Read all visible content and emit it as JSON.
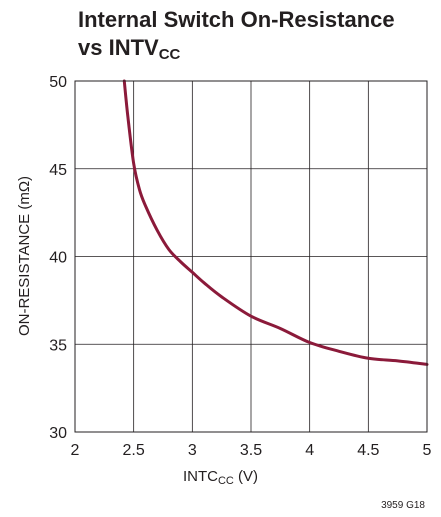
{
  "title": {
    "line1": "Internal Switch On-Resistance",
    "line2_main": "vs INTV",
    "line2_sub": "CC"
  },
  "footnote": "3959 G18",
  "chart_data": {
    "type": "line",
    "xlabel_main": "INTC",
    "xlabel_sub": "CC",
    "xlabel_unit": " (V)",
    "ylabel": "ON-RESISTANCE (mΩ)",
    "xlim": [
      2,
      5
    ],
    "ylim": [
      30,
      50
    ],
    "x_ticks": [
      2,
      2.5,
      3,
      3.5,
      4,
      4.5,
      5
    ],
    "x_tick_labels": [
      "2",
      "2.5",
      "3",
      "3.5",
      "4",
      "4.5",
      "5"
    ],
    "y_ticks": [
      30,
      35,
      40,
      45,
      50
    ],
    "y_tick_labels": [
      "30",
      "35",
      "40",
      "45",
      "50"
    ],
    "grid": true,
    "line_color": "#8b1a3a",
    "series": [
      {
        "x": [
          2.42,
          2.45,
          2.5,
          2.55,
          2.6,
          2.7,
          2.8,
          2.9,
          3.0,
          3.1,
          3.25,
          3.5,
          3.75,
          4.0,
          4.25,
          4.5,
          4.75,
          5.0
        ],
        "y": [
          50.0,
          48.0,
          45.3,
          43.8,
          42.9,
          41.5,
          40.4,
          39.7,
          39.1,
          38.5,
          37.7,
          36.6,
          35.9,
          35.1,
          34.6,
          34.2,
          34.05,
          33.85
        ]
      }
    ]
  }
}
